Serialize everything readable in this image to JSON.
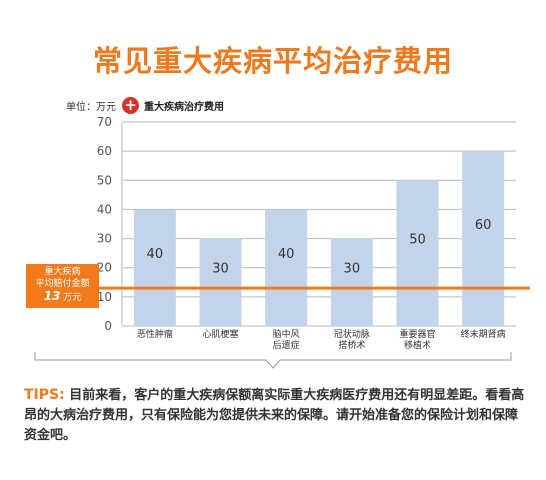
{
  "title": "常见重大疾病平均治疗费用",
  "unit_text": "单位：万元",
  "legend_label": "重大疾病治疗费用",
  "average_box": {
    "line1": "重大疾病",
    "line2": "平均赔付金额",
    "value": "13",
    "value_unit": "万元"
  },
  "tips": {
    "head": "TIPS:",
    "body": "目前来看，客户的重大疾病保额离实际重大疾病医疗费用还有明显差距。看看高昂的大病治疗费用，只有保险能为您提供未来的保障。请开始准备您的保险计划和保障资金吧。"
  },
  "chart_data": {
    "type": "bar",
    "categories": [
      [
        "恶性肿瘤"
      ],
      [
        "心肌梗塞"
      ],
      [
        "脑中风",
        "后遗症"
      ],
      [
        "冠状动脉",
        "搭桥术"
      ],
      [
        "重要器官",
        "移植术"
      ],
      [
        "终末期肾病"
      ]
    ],
    "values": [
      40,
      30,
      40,
      30,
      50,
      60
    ],
    "ylim": [
      0,
      70
    ],
    "yticks": [
      0,
      10,
      20,
      30,
      40,
      50,
      60,
      70
    ],
    "reference_line": 13,
    "grid": true,
    "colors": {
      "bar": "#c3d3ea",
      "reference": "#f07a1c",
      "grid": "#b9b9b9",
      "title": "#ee7a1f"
    }
  }
}
